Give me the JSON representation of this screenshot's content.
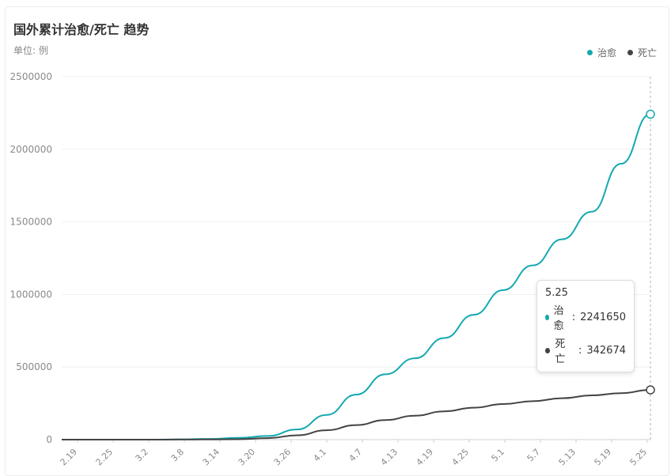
{
  "chart_data": {
    "type": "line",
    "title": "国外累计治愈/死亡 趋势",
    "subtitle": "单位: 例",
    "legend_position": "top-right",
    "grid": true,
    "ylim": [
      0,
      2500000
    ],
    "y_ticks": [
      "0",
      "500000",
      "1000000",
      "1500000",
      "2000000",
      "2500000"
    ],
    "x_ticks": [
      "2.19",
      "2.25",
      "3.2",
      "3.8",
      "3.14",
      "3.20",
      "3.26",
      "4.1",
      "4.7",
      "4.13",
      "4.19",
      "4.25",
      "5.1",
      "5.7",
      "5.13",
      "5.19",
      "5.25"
    ],
    "series": [
      {
        "name": "治愈",
        "color": "#14a9b0",
        "values": [
          0,
          0,
          0,
          0,
          2000,
          5000,
          12000,
          25000,
          70000,
          170000,
          310000,
          450000,
          560000,
          700000,
          860000,
          1030000,
          1200000,
          1380000,
          1570000,
          1900000,
          2241650
        ]
      },
      {
        "name": "死亡",
        "color": "#444444",
        "values": [
          0,
          0,
          0,
          0,
          500,
          1500,
          3000,
          10000,
          30000,
          65000,
          100000,
          135000,
          165000,
          195000,
          220000,
          245000,
          265000,
          285000,
          305000,
          320000,
          342674
        ]
      }
    ],
    "tooltip": {
      "date": "5.25",
      "items": [
        {
          "name": "治愈",
          "value": "2241650",
          "color": "#14a9b0"
        },
        {
          "name": "死亡",
          "value": "342674",
          "color": "#444444"
        }
      ]
    }
  }
}
